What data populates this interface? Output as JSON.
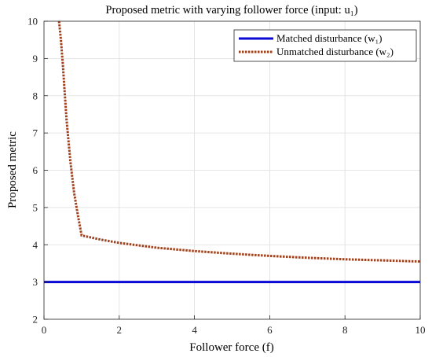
{
  "chart_data": {
    "type": "line",
    "title": "Proposed metric with varying follower force (input: u₁)",
    "xlabel": "Follower force (f)",
    "ylabel": "Proposed metric",
    "xlim": [
      0,
      10
    ],
    "ylim": [
      2,
      10
    ],
    "xticks": [
      "0",
      "2",
      "4",
      "6",
      "8",
      "10"
    ],
    "yticks": [
      "2",
      "3",
      "4",
      "5",
      "6",
      "7",
      "8",
      "9",
      "10"
    ],
    "grid": true,
    "legend_position": "top-right",
    "series": [
      {
        "name": "Matched disturbance (w₁)",
        "color": "#0a0ad6",
        "style": "solid",
        "x": [
          0,
          10
        ],
        "y": [
          3.0,
          3.0
        ]
      },
      {
        "name": "Unmatched disturbance (w₂)",
        "color": "#a0401c",
        "style": "dotted",
        "x": [
          0.4,
          0.45,
          0.5,
          0.55,
          0.6,
          0.7,
          0.8,
          0.9,
          1.0,
          1.5,
          2,
          3,
          4,
          5,
          6,
          7,
          8,
          9,
          10
        ],
        "y": [
          10.0,
          9.5,
          8.85,
          8.1,
          7.35,
          6.25,
          5.4,
          4.8,
          4.25,
          4.14,
          4.05,
          3.92,
          3.83,
          3.76,
          3.7,
          3.65,
          3.61,
          3.58,
          3.55
        ]
      }
    ]
  }
}
